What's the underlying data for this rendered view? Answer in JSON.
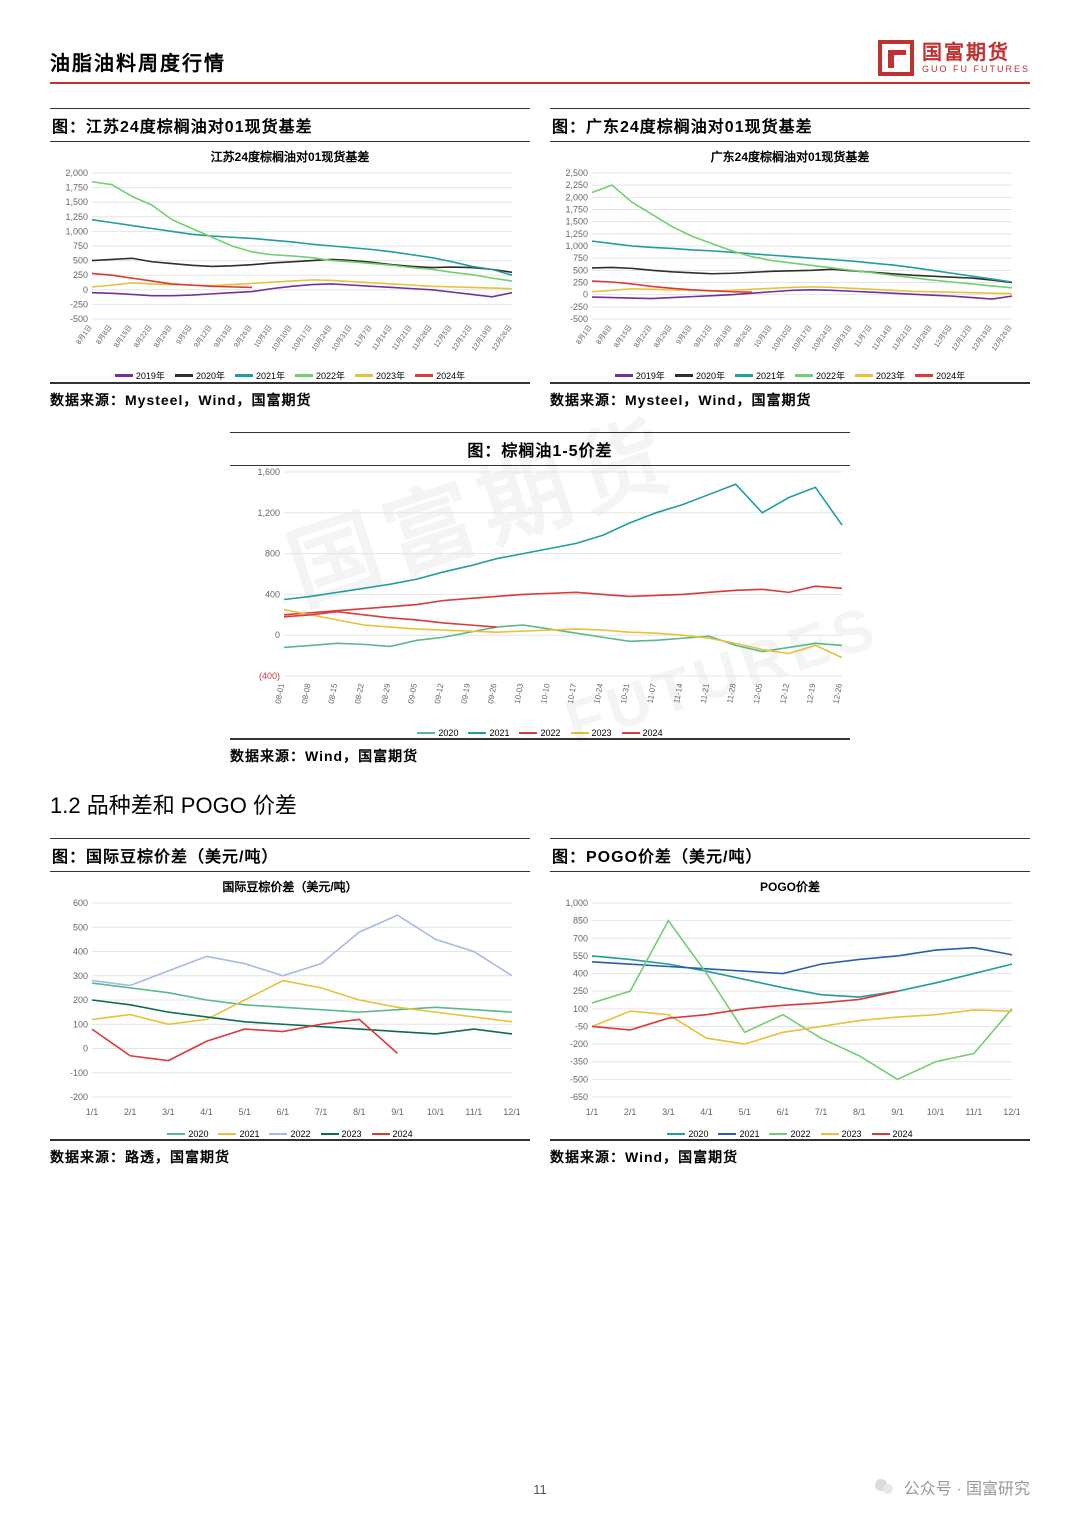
{
  "header": {
    "title": "油脂油料周度行情"
  },
  "logo": {
    "cn": "国富期货",
    "en": "GUO FU FUTURES"
  },
  "section_title": "1.2 品种差和 POGO 价差",
  "page_number": "11",
  "footer_account": "公众号 · 国富研究",
  "palette": {
    "y2019": "#7030a0",
    "y2020": "#2e2e2e",
    "y2021": "#1f9e9e",
    "y2022": "#70d070",
    "y2023": "#e8c13a",
    "y2024": "#d93a3a",
    "alt2020": "#5ab88a",
    "alt2021": "#2a5db0",
    "alt2022": "#a8b8e8",
    "alt2023": "#0b6e4f",
    "neg_label": "#d93a3a"
  },
  "x_dates_aug_dec": [
    "8月1日",
    "8月8日",
    "8月15日",
    "8月22日",
    "8月29日",
    "9月5日",
    "9月12日",
    "9月19日",
    "9月26日",
    "10月3日",
    "10月10日",
    "10月17日",
    "10月24日",
    "10月31日",
    "11月7日",
    "11月14日",
    "11月21日",
    "11月28日",
    "12月5日",
    "12月12日",
    "12月19日",
    "12月26日"
  ],
  "x_dates_mmdd": [
    "08-01",
    "08-08",
    "08-15",
    "08-22",
    "08-29",
    "09-05",
    "09-12",
    "09-19",
    "09-26",
    "10-03",
    "10-10",
    "10-17",
    "10-24",
    "10-31",
    "11-07",
    "11-14",
    "11-21",
    "11-28",
    "12-05",
    "12-12",
    "12-19",
    "12-26"
  ],
  "x_months": [
    "1/1",
    "2/1",
    "3/1",
    "4/1",
    "5/1",
    "6/1",
    "7/1",
    "8/1",
    "9/1",
    "10/1",
    "11/1",
    "12/1"
  ],
  "chart1": {
    "title_bar": "图：江苏24度棕榈油对01现货基差",
    "inner_title": "江苏24度棕榈油对01现货基差",
    "source": "数据来源：Mysteel，Wind，国富期货",
    "ylim": [
      -500,
      2000
    ],
    "ytick_step": 250,
    "legend": [
      {
        "label": "2019年",
        "color": "#7030a0"
      },
      {
        "label": "2020年",
        "color": "#2e2e2e"
      },
      {
        "label": "2021年",
        "color": "#1f9e9e"
      },
      {
        "label": "2022年",
        "color": "#70d070"
      },
      {
        "label": "2023年",
        "color": "#e8c13a"
      },
      {
        "label": "2024年",
        "color": "#d93a3a"
      }
    ],
    "series": {
      "2019": [
        -50,
        -60,
        -80,
        -100,
        -100,
        -90,
        -70,
        -50,
        -30,
        20,
        60,
        90,
        100,
        80,
        60,
        40,
        20,
        0,
        -40,
        -80,
        -120,
        -50
      ],
      "2020": [
        500,
        520,
        540,
        480,
        450,
        420,
        400,
        410,
        430,
        460,
        480,
        500,
        520,
        500,
        470,
        430,
        400,
        380,
        390,
        380,
        350,
        300
      ],
      "2021": [
        1200,
        1150,
        1100,
        1050,
        1000,
        950,
        920,
        900,
        880,
        850,
        820,
        780,
        750,
        720,
        690,
        650,
        600,
        550,
        480,
        400,
        350,
        250
      ],
      "2022": [
        1850,
        1800,
        1600,
        1450,
        1200,
        1050,
        900,
        750,
        650,
        600,
        580,
        550,
        500,
        480,
        450,
        420,
        380,
        350,
        300,
        260,
        200,
        150
      ],
      "2023": [
        50,
        80,
        120,
        100,
        90,
        80,
        70,
        90,
        110,
        130,
        150,
        170,
        160,
        140,
        120,
        100,
        80,
        60,
        50,
        40,
        30,
        20
      ],
      "2024": [
        280,
        250,
        200,
        150,
        100,
        80,
        60,
        50,
        40
      ]
    }
  },
  "chart2": {
    "title_bar": "图：广东24度棕榈油对01现货基差",
    "inner_title": "广东24度棕榈油对01现货基差",
    "source": "数据来源：Mysteel，Wind，国富期货",
    "ylim": [
      -500,
      2500
    ],
    "ytick_step": 250,
    "legend": [
      {
        "label": "2019年",
        "color": "#7030a0"
      },
      {
        "label": "2020年",
        "color": "#2e2e2e"
      },
      {
        "label": "2021年",
        "color": "#1f9e9e"
      },
      {
        "label": "2022年",
        "color": "#70d070"
      },
      {
        "label": "2023年",
        "color": "#e8c13a"
      },
      {
        "label": "2024年",
        "color": "#d93a3a"
      }
    ],
    "series": {
      "2019": [
        -50,
        -60,
        -70,
        -80,
        -60,
        -40,
        -20,
        0,
        30,
        60,
        90,
        100,
        90,
        70,
        50,
        30,
        10,
        -10,
        -30,
        -60,
        -90,
        -30
      ],
      "2020": [
        550,
        560,
        540,
        500,
        470,
        450,
        430,
        440,
        460,
        480,
        490,
        500,
        520,
        490,
        460,
        430,
        400,
        380,
        360,
        340,
        300,
        250
      ],
      "2021": [
        1100,
        1050,
        1000,
        970,
        950,
        920,
        900,
        870,
        840,
        810,
        780,
        750,
        720,
        690,
        650,
        610,
        560,
        500,
        440,
        380,
        320,
        260
      ],
      "2022": [
        2100,
        2250,
        1900,
        1650,
        1400,
        1200,
        1050,
        900,
        780,
        700,
        650,
        600,
        550,
        500,
        450,
        400,
        350,
        300,
        260,
        220,
        180,
        140
      ],
      "2023": [
        60,
        90,
        120,
        110,
        100,
        90,
        80,
        90,
        110,
        130,
        150,
        160,
        150,
        130,
        110,
        90,
        70,
        60,
        50,
        40,
        30,
        20
      ],
      "2024": [
        280,
        260,
        220,
        170,
        130,
        100,
        80,
        60,
        50
      ]
    }
  },
  "chart3": {
    "title_bar": "图：棕榈油1-5价差",
    "source": "数据来源：Wind，国富期货",
    "ylim": [
      -400,
      1600
    ],
    "ytick_step": 400,
    "legend": [
      {
        "label": "2020",
        "color": "#5ab88a"
      },
      {
        "label": "2021",
        "color": "#1f9e9e"
      },
      {
        "label": "2022",
        "color": "#d93a3a"
      },
      {
        "label": "2023",
        "color": "#e8c13a"
      },
      {
        "label": "2024",
        "color": "#d93a3a"
      }
    ],
    "series": {
      "2020": [
        -120,
        -100,
        -80,
        -90,
        -110,
        -50,
        -20,
        30,
        80,
        100,
        60,
        20,
        -20,
        -60,
        -50,
        -30,
        -10,
        -100,
        -160,
        -120,
        -80,
        -100
      ],
      "2021": [
        350,
        380,
        420,
        460,
        500,
        550,
        620,
        680,
        750,
        800,
        850,
        900,
        980,
        1100,
        1200,
        1280,
        1380,
        1480,
        1200,
        1350,
        1450,
        1080
      ],
      "2022": [
        200,
        220,
        240,
        260,
        280,
        300,
        340,
        360,
        380,
        400,
        410,
        420,
        400,
        380,
        390,
        400,
        420,
        440,
        450,
        420,
        480,
        460
      ],
      "2023": [
        250,
        200,
        150,
        100,
        80,
        60,
        50,
        40,
        30,
        40,
        50,
        60,
        50,
        30,
        20,
        0,
        -30,
        -80,
        -140,
        -180,
        -100,
        -220
      ],
      "2024": [
        180,
        200,
        230,
        200,
        170,
        150,
        120,
        100,
        80
      ]
    }
  },
  "chart4": {
    "title_bar": "图：国际豆棕价差（美元/吨）",
    "inner_title": "国际豆棕价差（美元/吨）",
    "source": "数据来源：路透，国富期货",
    "ylim": [
      -200,
      600
    ],
    "ytick_step": 100,
    "legend": [
      {
        "label": "2020",
        "color": "#5ab88a"
      },
      {
        "label": "2021",
        "color": "#e8c13a"
      },
      {
        "label": "2022",
        "color": "#a8b8e8"
      },
      {
        "label": "2023",
        "color": "#0b6e4f"
      },
      {
        "label": "2024",
        "color": "#d93a3a"
      }
    ],
    "series": {
      "2020": [
        270,
        250,
        230,
        200,
        180,
        170,
        160,
        150,
        160,
        170,
        160,
        150
      ],
      "2021": [
        120,
        140,
        100,
        120,
        200,
        280,
        250,
        200,
        170,
        150,
        130,
        110
      ],
      "2022": [
        280,
        260,
        320,
        380,
        350,
        300,
        350,
        480,
        550,
        450,
        400,
        300
      ],
      "2023": [
        200,
        180,
        150,
        130,
        110,
        100,
        90,
        80,
        70,
        60,
        80,
        60
      ],
      "2024": [
        80,
        -30,
        -50,
        30,
        80,
        70,
        100,
        120,
        -20
      ]
    }
  },
  "chart5": {
    "title_bar": "图：POGO价差（美元/吨）",
    "inner_title": "POGO价差",
    "source": "数据来源：Wind，国富期货",
    "ylim": [
      -650,
      1000
    ],
    "ytick_step": 150,
    "legend": [
      {
        "label": "2020",
        "color": "#1f9e9e"
      },
      {
        "label": "2021",
        "color": "#2a5db0"
      },
      {
        "label": "2022",
        "color": "#70d070"
      },
      {
        "label": "2023",
        "color": "#e8c13a"
      },
      {
        "label": "2024",
        "color": "#d93a3a"
      }
    ],
    "series": {
      "2020": [
        550,
        520,
        480,
        420,
        350,
        280,
        220,
        200,
        250,
        320,
        400,
        480
      ],
      "2021": [
        500,
        480,
        460,
        440,
        420,
        400,
        480,
        520,
        550,
        600,
        620,
        560
      ],
      "2022": [
        150,
        250,
        850,
        400,
        -100,
        50,
        -150,
        -300,
        -500,
        -350,
        -280,
        100
      ],
      "2023": [
        -50,
        80,
        50,
        -150,
        -200,
        -100,
        -50,
        0,
        30,
        50,
        90,
        80
      ],
      "2024": [
        -50,
        -80,
        20,
        50,
        100,
        130,
        150,
        180,
        250
      ]
    }
  }
}
